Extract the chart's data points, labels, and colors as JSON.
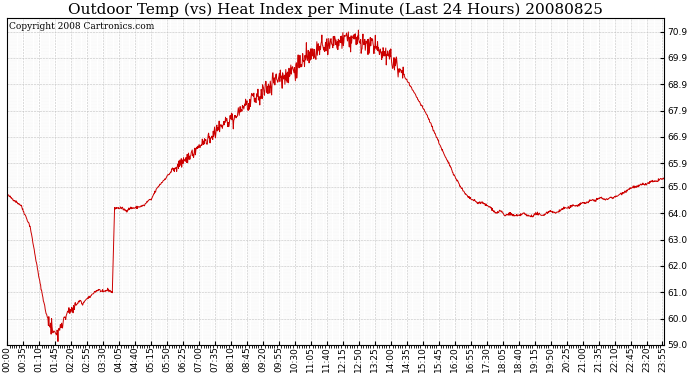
{
  "title": "Outdoor Temp (vs) Heat Index per Minute (Last 24 Hours) 20080825",
  "copyright": "Copyright 2008 Cartronics.com",
  "line_color": "#cc0000",
  "background_color": "#ffffff",
  "grid_color": "#bbbbbb",
  "ylim": [
    59.0,
    71.4
  ],
  "yticks": [
    59.0,
    60.0,
    61.0,
    62.0,
    63.0,
    64.0,
    65.0,
    65.9,
    66.9,
    67.9,
    68.9,
    69.9,
    70.9
  ],
  "title_fontsize": 11,
  "axis_fontsize": 6.5,
  "copyright_fontsize": 6.5,
  "tick_step_minutes": 35
}
